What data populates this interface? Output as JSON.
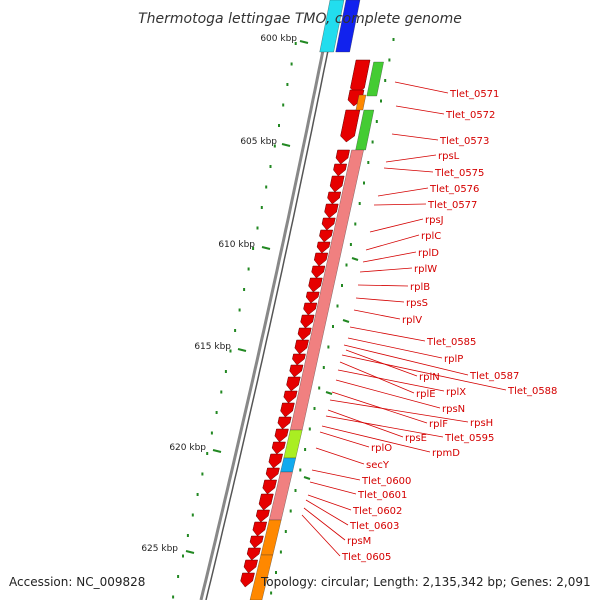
{
  "title": "Thermotoga lettingae TMO, complete genome",
  "footer": {
    "accession": "Accession: NC_009828",
    "summary": "Topology: circular; Length: 2,135,342 bp; Genes: 2,091"
  },
  "tick_labels": [
    "600 kbp",
    "605 kbp",
    "610 kbp",
    "615 kbp",
    "620 kbp",
    "625 kbp"
  ],
  "gene_labels": [
    "Tlet_0571",
    "Tlet_0572",
    "Tlet_0573",
    "rpsL",
    "Tlet_0575",
    "Tlet_0576",
    "Tlet_0577",
    "rpsJ",
    "rplC",
    "rplD",
    "rplW",
    "rplB",
    "rpsS",
    "rplV",
    "Tlet_0585",
    "rplP",
    "Tlet_0587",
    "rplN",
    "Tlet_0588",
    "rplE",
    "rplX",
    "rpsN",
    "rplF",
    "rpsH",
    "rpsE",
    "Tlet_0595",
    "rpmD",
    "rplO",
    "secY",
    "Tlet_0600",
    "Tlet_0601",
    "Tlet_0602",
    "Tlet_0603",
    "rpsM",
    "Tlet_0605"
  ],
  "colors": {
    "cds_forward": "#e60000",
    "cds_highlight": "#f08080",
    "green_gene": "#44cc33",
    "orange_gene": "#ff8800",
    "cyan_gene": "#11aaee",
    "lime_gene": "#aaee22",
    "backbone": "#777777",
    "tick": "#228822",
    "label": "#d40000"
  }
}
